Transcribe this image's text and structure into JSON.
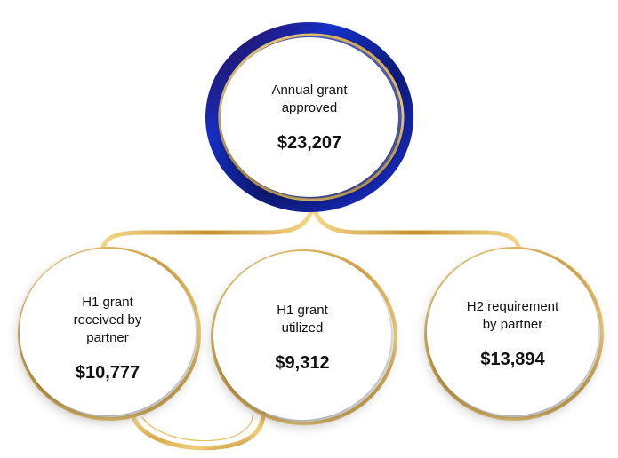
{
  "nodes": {
    "annual": {
      "label": "Annual grant\napproved",
      "value": "$23,207"
    },
    "h1_received": {
      "label": "H1 grant\nreceived by\npartner",
      "value": "$10,777"
    },
    "h1_utilized": {
      "label": "H1 grant\nutilized",
      "value": "$9,312"
    },
    "h2_required": {
      "label": "H2 requirement\nby partner",
      "value": "$13,894"
    }
  },
  "colors": {
    "gold_light": "#f3d27c",
    "gold": "#d9a94a",
    "gold_dark": "#a8741f",
    "navy": "#0d1a78",
    "royal_blue": "#1630c8",
    "deep_purple": "#2a0a44"
  }
}
